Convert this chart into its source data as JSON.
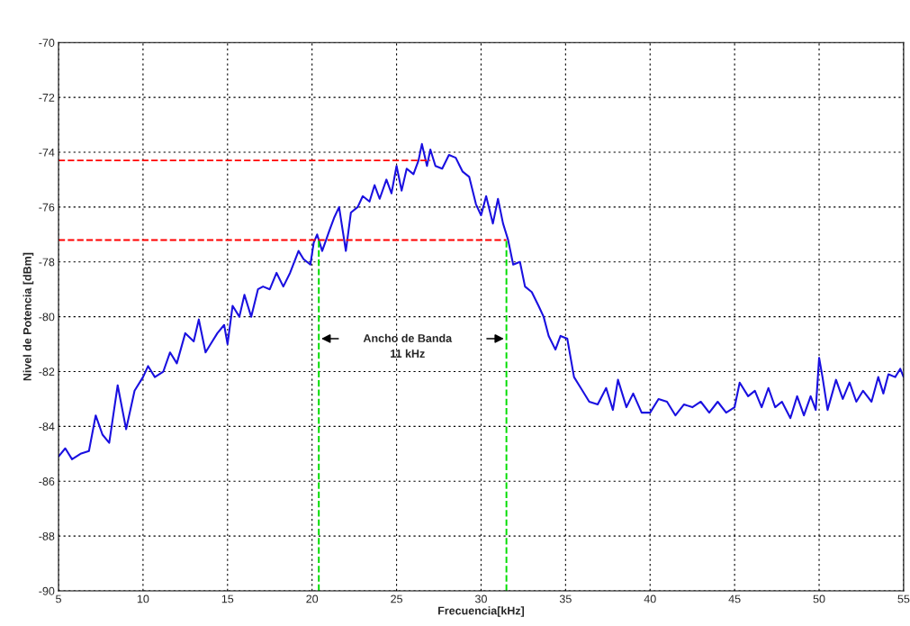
{
  "chart_data": {
    "type": "line",
    "xlabel": "Frecuencia[kHz]",
    "ylabel": "Nivel de Potencia [dBm]",
    "xlim": [
      5,
      55
    ],
    "xticks": [
      5,
      10,
      15,
      20,
      25,
      30,
      35,
      40,
      45,
      50,
      55
    ],
    "ylim": [
      -90,
      -70
    ],
    "yticks": [
      -90,
      -88,
      -86,
      -84,
      -82,
      -80,
      -78,
      -76,
      -74,
      -72,
      -70
    ],
    "grid": true,
    "legend": false,
    "annotations": [
      "Ancho de Banda\n11 kHz"
    ],
    "series": [
      {
        "color": "#1a10e0",
        "line_style": "solid",
        "x": [
          5.0,
          5.4,
          5.8,
          6.3,
          6.8,
          7.2,
          7.6,
          8.0,
          8.5,
          9.0,
          9.5,
          10.0,
          10.3,
          10.7,
          11.2,
          11.6,
          12.0,
          12.5,
          13.0,
          13.3,
          13.7,
          14.0,
          14.4,
          14.8,
          15.0,
          15.3,
          15.7,
          16.0,
          16.4,
          16.8,
          17.1,
          17.5,
          17.9,
          18.3,
          18.7,
          19.2,
          19.5,
          19.9,
          20.1,
          20.3,
          20.6,
          21.0,
          21.3,
          21.6,
          22.0,
          22.3,
          22.7,
          23.0,
          23.4,
          23.7,
          24.0,
          24.4,
          24.7,
          25.0,
          25.3,
          25.6,
          26.0,
          26.3,
          26.5,
          26.8,
          27.0,
          27.3,
          27.7,
          28.1,
          28.5,
          28.9,
          29.3,
          29.7,
          30.0,
          30.3,
          30.7,
          31.0,
          31.3,
          31.6,
          31.9,
          32.3,
          32.6,
          33.0,
          33.4,
          33.7,
          34.0,
          34.4,
          34.7,
          35.1,
          35.5,
          35.9,
          36.4,
          36.9,
          37.4,
          37.8,
          38.1,
          38.6,
          39.0,
          39.5,
          40.0,
          40.5,
          41.0,
          41.5,
          42.0,
          42.5,
          43.0,
          43.5,
          44.0,
          44.5,
          45.0,
          45.3,
          45.8,
          46.2,
          46.6,
          47.0,
          47.4,
          47.8,
          48.3,
          48.7,
          49.1,
          49.5,
          49.8,
          50.0,
          50.2,
          50.5,
          51.0,
          51.4,
          51.8,
          52.2,
          52.6,
          53.1,
          53.5,
          53.8,
          54.1,
          54.5,
          54.8,
          55.0
        ],
        "values": [
          -85.1,
          -84.8,
          -85.2,
          -85.0,
          -84.9,
          -83.6,
          -84.3,
          -84.6,
          -82.5,
          -84.1,
          -82.7,
          -82.2,
          -81.8,
          -82.2,
          -82.0,
          -81.3,
          -81.7,
          -80.6,
          -80.9,
          -80.1,
          -81.3,
          -81.0,
          -80.6,
          -80.3,
          -81.0,
          -79.6,
          -80.0,
          -79.2,
          -80.0,
          -79.0,
          -78.9,
          -79.0,
          -78.4,
          -78.9,
          -78.4,
          -77.6,
          -77.9,
          -78.1,
          -77.3,
          -77.0,
          -77.6,
          -76.9,
          -76.4,
          -76.0,
          -77.6,
          -76.2,
          -76.0,
          -75.6,
          -75.8,
          -75.2,
          -75.7,
          -75.0,
          -75.5,
          -74.5,
          -75.4,
          -74.6,
          -74.8,
          -74.3,
          -73.7,
          -74.5,
          -73.9,
          -74.5,
          -74.6,
          -74.1,
          -74.2,
          -74.7,
          -74.9,
          -75.9,
          -76.3,
          -75.6,
          -76.6,
          -75.7,
          -76.6,
          -77.2,
          -78.1,
          -78.0,
          -78.9,
          -79.1,
          -79.6,
          -80.0,
          -80.7,
          -81.2,
          -80.7,
          -80.8,
          -82.2,
          -82.6,
          -83.1,
          -83.2,
          -82.6,
          -83.4,
          -82.3,
          -83.3,
          -82.8,
          -83.5,
          -83.5,
          -83.0,
          -83.1,
          -83.6,
          -83.2,
          -83.3,
          -83.1,
          -83.5,
          -83.1,
          -83.5,
          -83.3,
          -82.4,
          -82.9,
          -82.7,
          -83.3,
          -82.6,
          -83.3,
          -83.1,
          -83.7,
          -82.9,
          -83.6,
          -82.9,
          -83.4,
          -81.5,
          -82.2,
          -83.4,
          -82.3,
          -83.0,
          -82.4,
          -83.1,
          -82.7,
          -83.1,
          -82.2,
          -82.8,
          -82.1,
          -82.2,
          -81.9,
          -82.2
        ]
      },
      {
        "color": "#ff0000",
        "line_style": "dashed",
        "x": [
          5,
          27.0
        ],
        "values": [
          -74.3,
          -74.3
        ]
      },
      {
        "color": "#ff0000",
        "line_style": "dashed",
        "x": [
          5,
          31.5
        ],
        "values": [
          -77.2,
          -77.2
        ]
      },
      {
        "color": "#00dd00",
        "line_style": "dashed",
        "x": [
          20.4,
          20.4
        ],
        "values": [
          -90,
          -77.2
        ]
      },
      {
        "color": "#00dd00",
        "line_style": "dashed",
        "x": [
          31.5,
          31.5
        ],
        "values": [
          -90,
          -77.2
        ]
      }
    ]
  }
}
